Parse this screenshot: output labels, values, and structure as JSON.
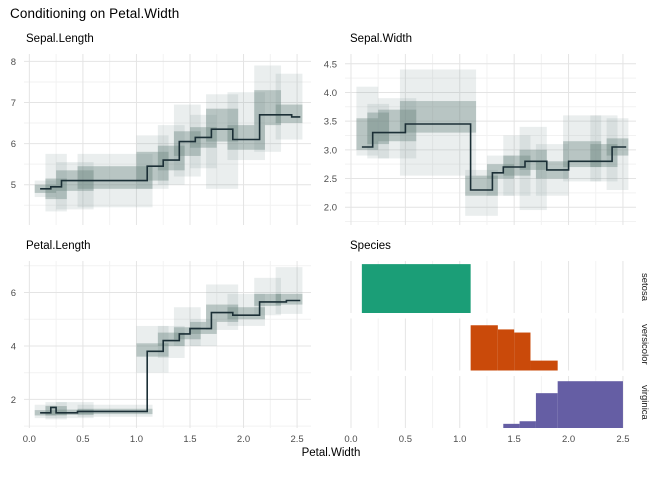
{
  "title": "Conditioning on Petal.Width",
  "x_axis": {
    "label": "Petal.Width",
    "tick_labels": [
      "0.0",
      "0.5",
      "1.0",
      "1.5",
      "2.0",
      "2.5"
    ],
    "tick_values": [
      0,
      0.5,
      1,
      1.5,
      2,
      2.5
    ],
    "grid_major": [
      0,
      0.5,
      1,
      1.5,
      2,
      2.5
    ],
    "grid_minor": [
      0.25,
      0.75,
      1.25,
      1.75,
      2.25
    ]
  },
  "colors": {
    "background": "#ffffff",
    "line": "#1B2F36",
    "band_outer": "#7F9893",
    "band_inner": "#6E8681",
    "grid_major": "#E4E4E4",
    "grid_minor": "#F2F2F2",
    "tick_text": "#4D4D4D",
    "title_text": "#000000",
    "setosa": "#1B9E77",
    "versicolor": "#CA4A0A",
    "virginica": "#655EA4"
  },
  "chart_data": [
    {
      "type": "area",
      "id": "sepal-length",
      "title": "Sepal.Length",
      "xlabel": "Petal.Width",
      "ylim": [
        4.02,
        8.18
      ],
      "y_ticks": [
        {
          "label": "8",
          "value": 8
        },
        {
          "label": "7",
          "value": 7
        },
        {
          "label": "6",
          "value": 6
        },
        {
          "label": "5",
          "value": 5
        }
      ],
      "y_grid_minor": [
        4.5,
        5.5,
        6.5,
        7.5
      ],
      "median_steps": {
        "x": [
          0.1,
          0.2,
          0.3,
          1.1,
          1.25,
          1.4,
          1.55,
          1.7,
          1.9,
          2.15,
          2.45
        ],
        "y": [
          4.9,
          4.95,
          5.1,
          5.45,
          5.6,
          6.05,
          6.15,
          6.35,
          6.1,
          6.7,
          6.65
        ],
        "x_end": 2.53
      },
      "outer_band": [
        [
          0.05,
          0.25,
          4.7,
          5.1
        ],
        [
          0.15,
          0.35,
          4.35,
          5.75
        ],
        [
          0.25,
          0.6,
          4.4,
          5.55
        ],
        [
          0.45,
          1.15,
          4.45,
          5.75
        ],
        [
          1.0,
          1.3,
          4.9,
          6.2
        ],
        [
          1.2,
          1.45,
          5.0,
          6.45
        ],
        [
          1.35,
          1.6,
          5.2,
          6.95
        ],
        [
          1.5,
          1.75,
          5.4,
          6.7
        ],
        [
          1.65,
          1.95,
          4.9,
          7.2
        ],
        [
          1.85,
          2.2,
          5.6,
          7.25
        ],
        [
          2.1,
          2.35,
          5.8,
          7.9
        ],
        [
          2.3,
          2.55,
          6.1,
          7.7
        ]
      ],
      "inner_band": [
        [
          0.05,
          0.25,
          4.8,
          5.0
        ],
        [
          0.15,
          0.35,
          4.65,
          5.15
        ],
        [
          0.25,
          0.6,
          4.85,
          5.35
        ],
        [
          0.45,
          1.15,
          4.9,
          5.45
        ],
        [
          1.0,
          1.3,
          5.1,
          5.8
        ],
        [
          1.2,
          1.45,
          5.35,
          5.95
        ],
        [
          1.35,
          1.6,
          5.7,
          6.3
        ],
        [
          1.5,
          1.75,
          5.9,
          6.4
        ],
        [
          1.65,
          1.95,
          6.05,
          6.85
        ],
        [
          1.85,
          2.2,
          5.85,
          6.45
        ],
        [
          2.1,
          2.35,
          6.45,
          7.3
        ],
        [
          2.3,
          2.55,
          6.5,
          6.95
        ]
      ]
    },
    {
      "type": "area",
      "id": "sepal-width",
      "title": "Sepal.Width",
      "xlabel": "Petal.Width",
      "ylim": [
        1.69,
        4.67
      ],
      "y_ticks": [
        {
          "label": "4.5",
          "value": 4.5
        },
        {
          "label": "4.0",
          "value": 4.0
        },
        {
          "label": "3.5",
          "value": 3.5
        },
        {
          "label": "3.0",
          "value": 3.0
        },
        {
          "label": "2.5",
          "value": 2.5
        },
        {
          "label": "2.0",
          "value": 2.0
        }
      ],
      "y_grid_minor": [
        1.75,
        2.25,
        2.75,
        3.25,
        3.75,
        4.25
      ],
      "median_steps": {
        "x": [
          0.1,
          0.2,
          0.5,
          1.1,
          1.3,
          1.4,
          1.6,
          1.8,
          2.0,
          2.4
        ],
        "y": [
          3.05,
          3.3,
          3.45,
          2.3,
          2.6,
          2.7,
          2.8,
          2.65,
          2.8,
          3.05
        ],
        "x_end": 2.53
      },
      "outer_band": [
        [
          0.05,
          0.25,
          2.9,
          4.1
        ],
        [
          0.15,
          0.35,
          2.85,
          3.8
        ],
        [
          0.25,
          0.6,
          2.85,
          3.9
        ],
        [
          0.45,
          1.15,
          2.55,
          4.4
        ],
        [
          1.05,
          1.35,
          1.85,
          2.65
        ],
        [
          1.25,
          1.5,
          2.2,
          2.9
        ],
        [
          1.4,
          1.65,
          2.2,
          3.25
        ],
        [
          1.55,
          1.8,
          1.95,
          3.4
        ],
        [
          1.7,
          2.0,
          2.2,
          3.1
        ],
        [
          1.95,
          2.3,
          2.45,
          3.6
        ],
        [
          2.2,
          2.45,
          2.45,
          3.6
        ],
        [
          2.35,
          2.55,
          2.3,
          3.55
        ]
      ],
      "inner_band": [
        [
          0.05,
          0.25,
          3.0,
          3.55
        ],
        [
          0.15,
          0.35,
          3.1,
          3.65
        ],
        [
          0.25,
          0.6,
          3.15,
          3.7
        ],
        [
          0.45,
          1.15,
          3.3,
          3.85
        ],
        [
          1.05,
          1.35,
          2.2,
          2.55
        ],
        [
          1.25,
          1.5,
          2.5,
          2.75
        ],
        [
          1.4,
          1.65,
          2.55,
          2.9
        ],
        [
          1.55,
          1.8,
          2.65,
          3.0
        ],
        [
          1.7,
          2.0,
          2.5,
          2.8
        ],
        [
          1.95,
          2.3,
          2.7,
          3.15
        ],
        [
          2.2,
          2.45,
          2.7,
          3.1
        ],
        [
          2.35,
          2.55,
          2.9,
          3.2
        ]
      ]
    },
    {
      "type": "area",
      "id": "petal-length",
      "title": "Petal.Length",
      "xlabel": "Petal.Width",
      "ylim": [
        0.93,
        7.18
      ],
      "y_ticks": [
        {
          "label": "6",
          "value": 6
        },
        {
          "label": "4",
          "value": 4
        },
        {
          "label": "2",
          "value": 2
        }
      ],
      "y_grid_minor": [
        1,
        3,
        5,
        7
      ],
      "median_steps": {
        "x": [
          0.1,
          0.2,
          0.25,
          0.45,
          1.1,
          1.25,
          1.4,
          1.5,
          1.7,
          1.9,
          2.15,
          2.4
        ],
        "y": [
          1.5,
          1.7,
          1.5,
          1.55,
          3.8,
          4.2,
          4.45,
          4.65,
          5.25,
          5.15,
          5.65,
          5.7
        ],
        "x_end": 2.53
      },
      "outer_band": [
        [
          0.05,
          0.25,
          1.3,
          1.8
        ],
        [
          0.15,
          0.35,
          1.25,
          1.9
        ],
        [
          0.25,
          0.6,
          1.3,
          1.9
        ],
        [
          0.45,
          1.15,
          1.35,
          1.8
        ],
        [
          1.0,
          1.3,
          3.0,
          4.75
        ],
        [
          1.2,
          1.45,
          3.55,
          4.75
        ],
        [
          1.35,
          1.6,
          4.0,
          5.45
        ],
        [
          1.5,
          1.75,
          4.0,
          5.0
        ],
        [
          1.65,
          1.95,
          4.6,
          6.3
        ],
        [
          1.85,
          2.2,
          4.75,
          5.95
        ],
        [
          2.1,
          2.35,
          5.15,
          6.55
        ],
        [
          2.3,
          2.55,
          5.2,
          6.95
        ]
      ],
      "inner_band": [
        [
          0.05,
          0.25,
          1.4,
          1.6
        ],
        [
          0.15,
          0.35,
          1.4,
          1.75
        ],
        [
          0.25,
          0.6,
          1.42,
          1.62
        ],
        [
          0.45,
          1.15,
          1.45,
          1.65
        ],
        [
          1.0,
          1.3,
          3.6,
          4.1
        ],
        [
          1.2,
          1.45,
          4.0,
          4.5
        ],
        [
          1.35,
          1.6,
          4.25,
          4.7
        ],
        [
          1.5,
          1.75,
          4.45,
          4.9
        ],
        [
          1.65,
          1.95,
          4.9,
          5.55
        ],
        [
          1.85,
          2.2,
          5.0,
          5.45
        ],
        [
          2.1,
          2.35,
          5.5,
          5.95
        ],
        [
          2.3,
          2.55,
          5.55,
          5.95
        ]
      ]
    },
    {
      "type": "bar",
      "id": "species",
      "title": "Species",
      "xlabel": "Petal.Width",
      "facets": [
        {
          "label": "setosa",
          "color": "#1B9E77",
          "bars": [
            [
              0.1,
              1.1,
              0.94
            ]
          ]
        },
        {
          "label": "versicolor",
          "color": "#CA4A0A",
          "bars": [
            [
              1.1,
              1.35,
              0.87
            ],
            [
              1.35,
              1.5,
              0.79
            ],
            [
              1.5,
              1.65,
              0.73
            ],
            [
              1.65,
              1.9,
              0.19
            ]
          ]
        },
        {
          "label": "virginica",
          "color": "#655EA4",
          "bars": [
            [
              1.4,
              1.55,
              0.08
            ],
            [
              1.55,
              1.7,
              0.13
            ],
            [
              1.7,
              1.9,
              0.67
            ],
            [
              1.9,
              2.5,
              0.9
            ]
          ]
        }
      ]
    }
  ]
}
